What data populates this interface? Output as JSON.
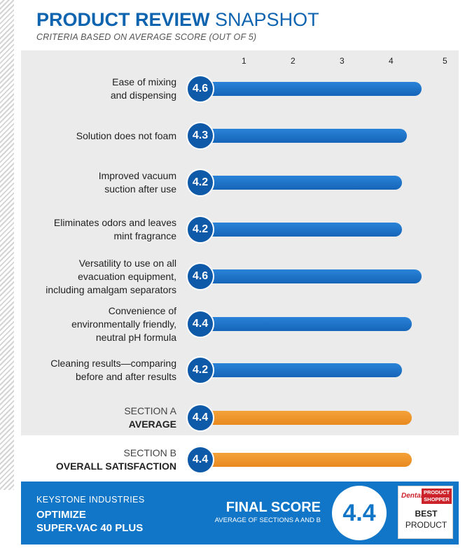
{
  "title_bold": "PRODUCT REVIEW",
  "title_light": "SNAPSHOT",
  "subtitle": "CRITERIA BASED ON AVERAGE SCORE (OUT OF 5)",
  "chart_data": {
    "type": "bar",
    "orientation": "horizontal",
    "title": "PRODUCT REVIEW SNAPSHOT",
    "subtitle": "CRITERIA BASED ON AVERAGE SCORE (OUT OF 5)",
    "xlim": [
      0,
      5
    ],
    "ticks": [
      "1",
      "2",
      "3",
      "4",
      "5"
    ],
    "categories": [
      {
        "lines": [
          "Ease of mixing",
          "and dispensing"
        ],
        "value": 4.6,
        "label": "4.6",
        "kind": "criterion"
      },
      {
        "lines": [
          "Solution does not foam"
        ],
        "value": 4.3,
        "label": "4.3",
        "kind": "criterion"
      },
      {
        "lines": [
          "Improved vacuum",
          "suction after use"
        ],
        "value": 4.2,
        "label": "4.2",
        "kind": "criterion"
      },
      {
        "lines": [
          "Eliminates odors and leaves",
          "mint fragrance"
        ],
        "value": 4.2,
        "label": "4.2",
        "kind": "criterion"
      },
      {
        "lines": [
          "Versatility to use on all",
          "evacuation equipment,",
          "including amalgam separators"
        ],
        "value": 4.6,
        "label": "4.6",
        "kind": "criterion"
      },
      {
        "lines": [
          "Convenience of",
          "environmentally friendly,",
          "neutral pH formula"
        ],
        "value": 4.4,
        "label": "4.4",
        "kind": "criterion"
      },
      {
        "lines": [
          "Cleaning results—comparing",
          "before and after results"
        ],
        "value": 4.2,
        "label": "4.2",
        "kind": "criterion"
      },
      {
        "lines": [
          "SECTION A"
        ],
        "bold": "AVERAGE",
        "value": 4.4,
        "label": "4.4",
        "kind": "section"
      },
      {
        "lines": [
          "SECTION B"
        ],
        "bold": "OVERALL SATISFACTION",
        "value": 4.4,
        "label": "4.4",
        "kind": "section"
      }
    ],
    "colors": {
      "criterion": "#1565b8",
      "section": "#e8891e",
      "badge": "#0f5aa8"
    }
  },
  "footer": {
    "company": "KEYSTONE INDUSTRIES",
    "product_line1": "OPTIMIZE",
    "product_line2": "SUPER-VAC 40 PLUS",
    "final_label": "FINAL SCORE",
    "final_sub": "AVERAGE OF SECTIONS A AND B",
    "final_value": "4.4",
    "award_brand": "Dental",
    "award_box_line1": "PRODUCT",
    "award_box_line2": "SHOPPER",
    "award_best": "BEST",
    "award_product": "PRODUCT"
  }
}
